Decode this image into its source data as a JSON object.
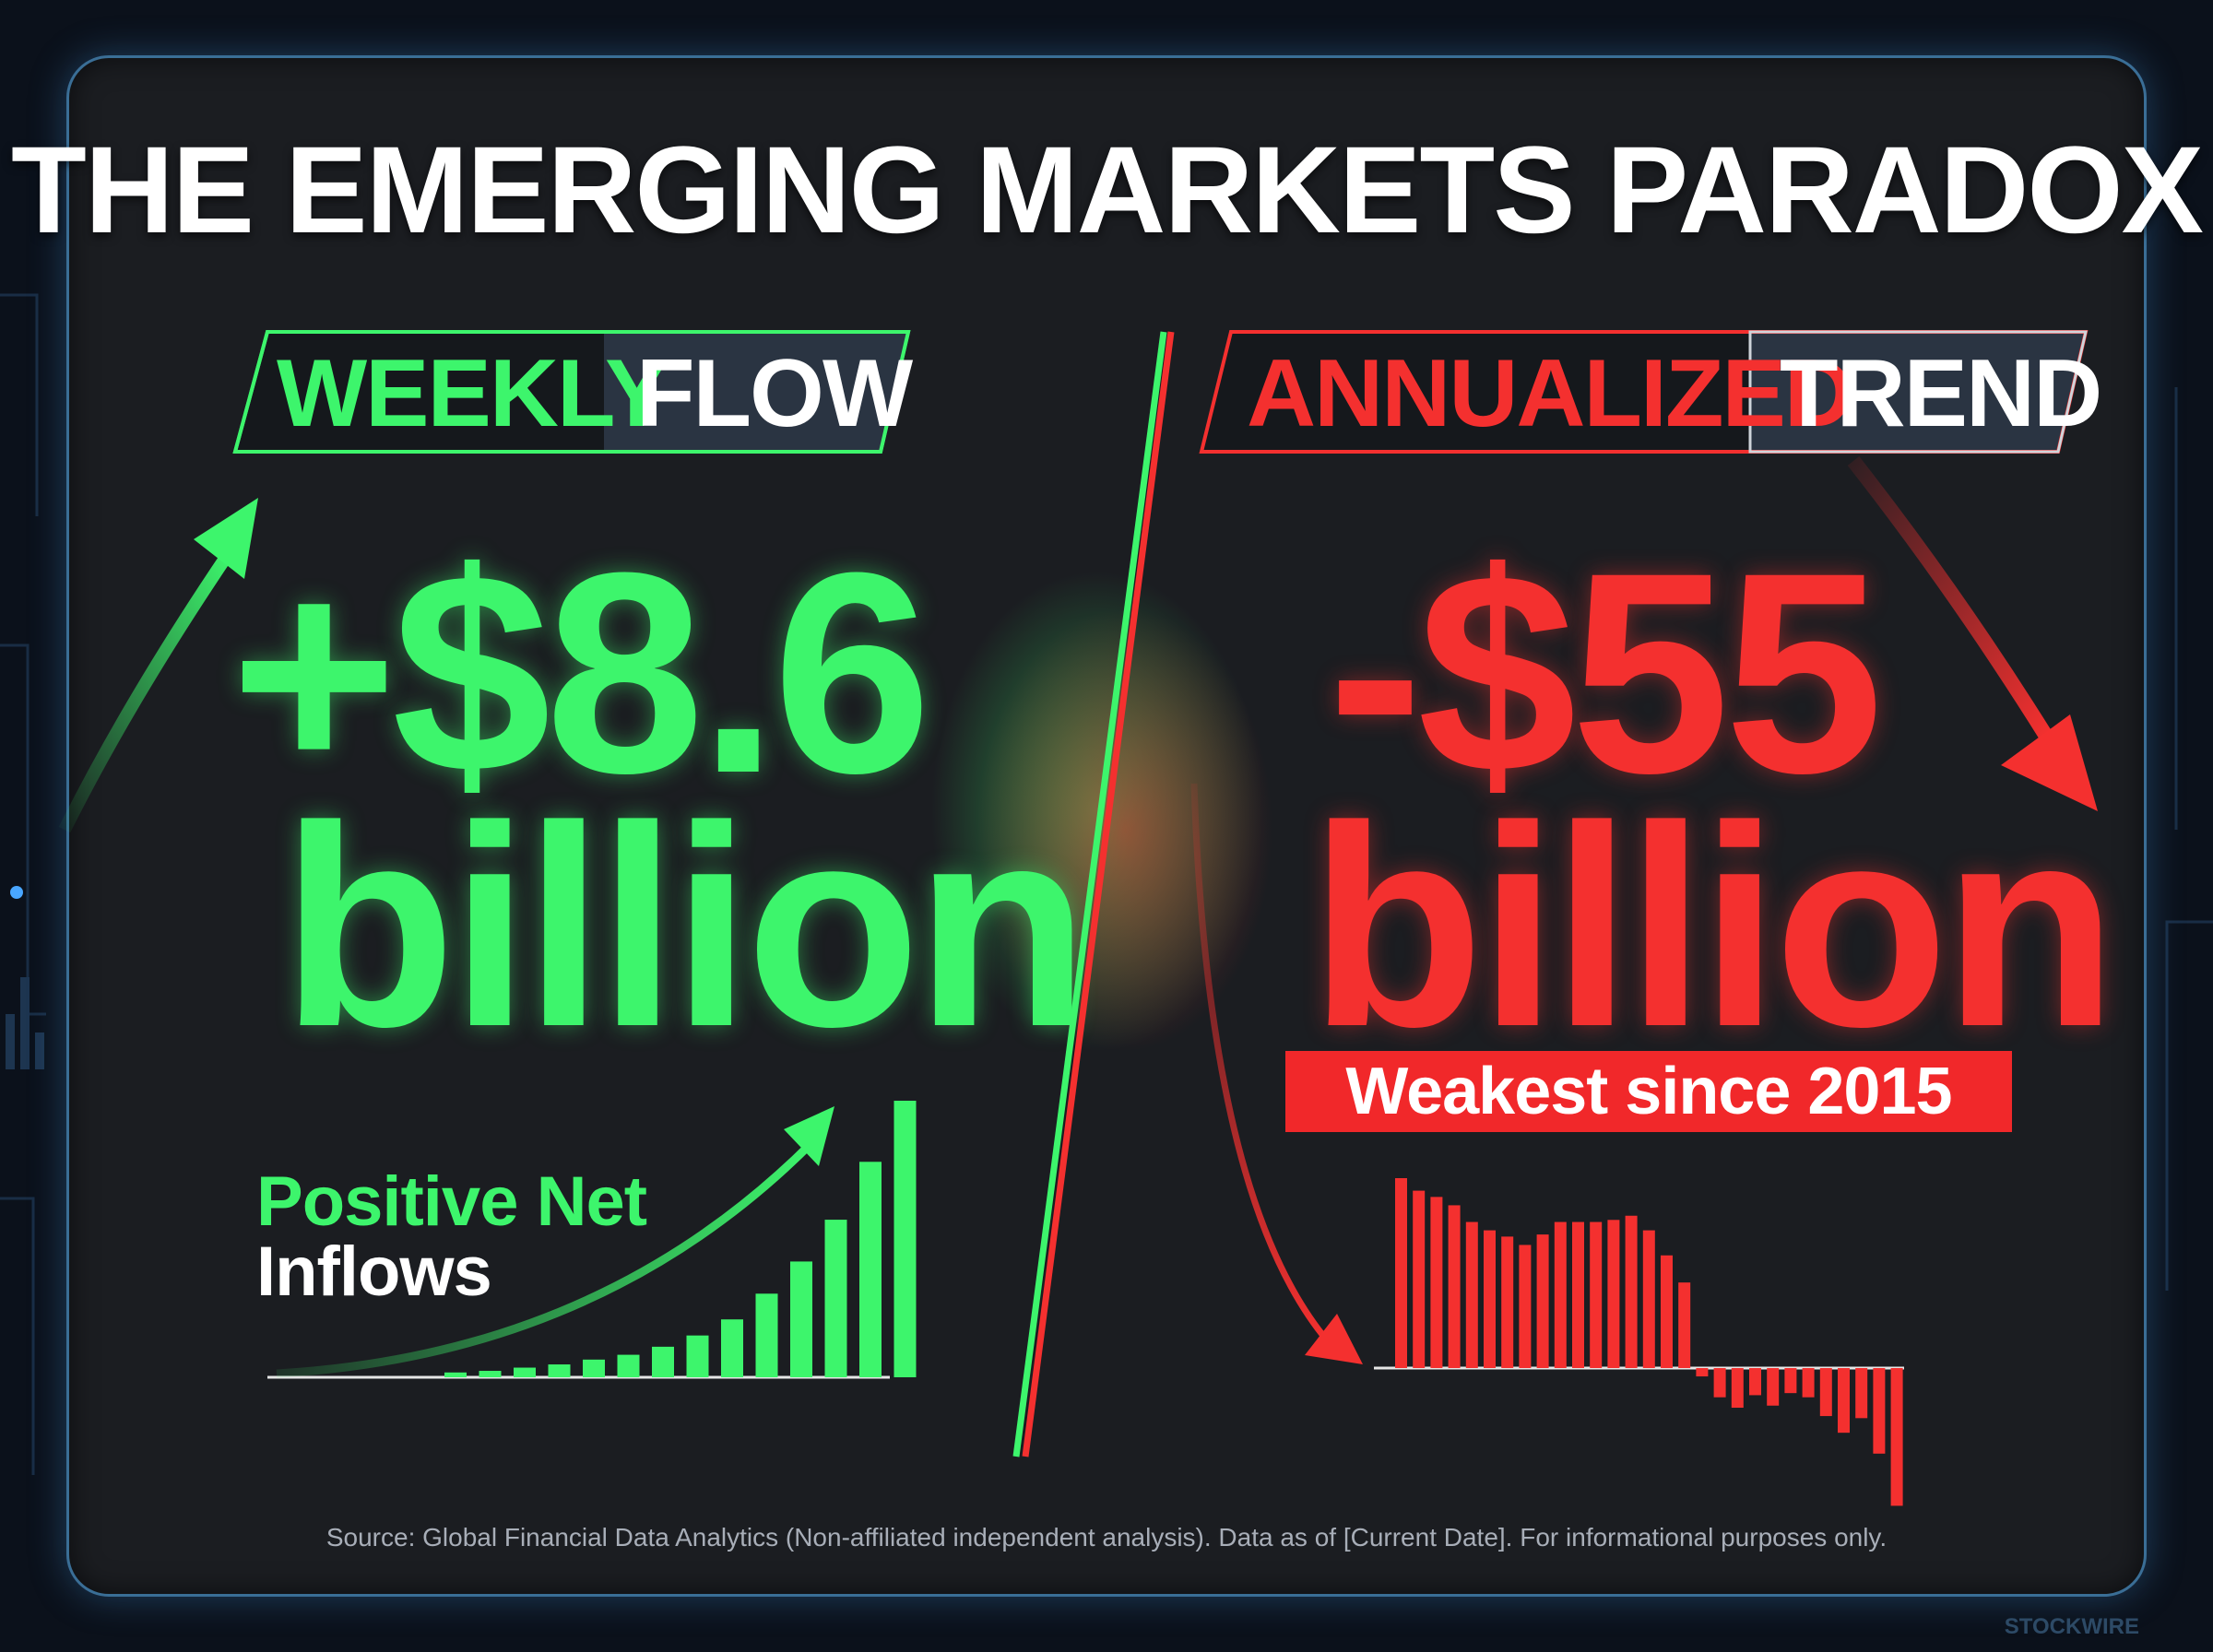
{
  "title": "THE EMERGING MARKETS PARADOX",
  "colors": {
    "positive": "#3df56c",
    "negative": "#f4302f",
    "background": "#1b1d21",
    "frame": "#3a6e96"
  },
  "left": {
    "banner_highlight": "WEEKLY",
    "banner_rest": "FLOW",
    "amount": "+$8.6",
    "unit": "billion",
    "label_line1": "Positive Net",
    "label_line2": "Inflows",
    "icon": "arrow-up-right-icon"
  },
  "right": {
    "banner_highlight": "ANNUALIZED",
    "banner_rest": "TREND",
    "amount": "-$55",
    "unit": "billion",
    "badge": "Weakest since 2015",
    "icon": "arrow-down-right-icon"
  },
  "source": "Source: Global Financial Data Analytics (Non-affiliated independent analysis). Data as of [Current Date]. For informational purposes only.",
  "watermark": "STOCKWIRE",
  "chart_data": [
    {
      "type": "bar",
      "values": [
        0.15,
        0.2,
        0.3,
        0.4,
        0.55,
        0.7,
        0.95,
        1.3,
        1.8,
        2.6,
        3.6,
        4.9,
        6.7,
        8.6
      ]
    },
    {
      "type": "bar",
      "values": [
        9.1,
        8.5,
        8.2,
        7.8,
        7.0,
        6.6,
        6.3,
        5.9,
        6.4,
        7.0,
        7.0,
        7.0,
        7.1,
        7.3,
        6.6,
        5.4,
        4.1,
        -0.4,
        -1.4,
        -1.9,
        -1.3,
        -1.8,
        -1.2,
        -1.4,
        -2.3,
        -3.1,
        -2.4,
        -4.1,
        -6.6
      ]
    }
  ]
}
